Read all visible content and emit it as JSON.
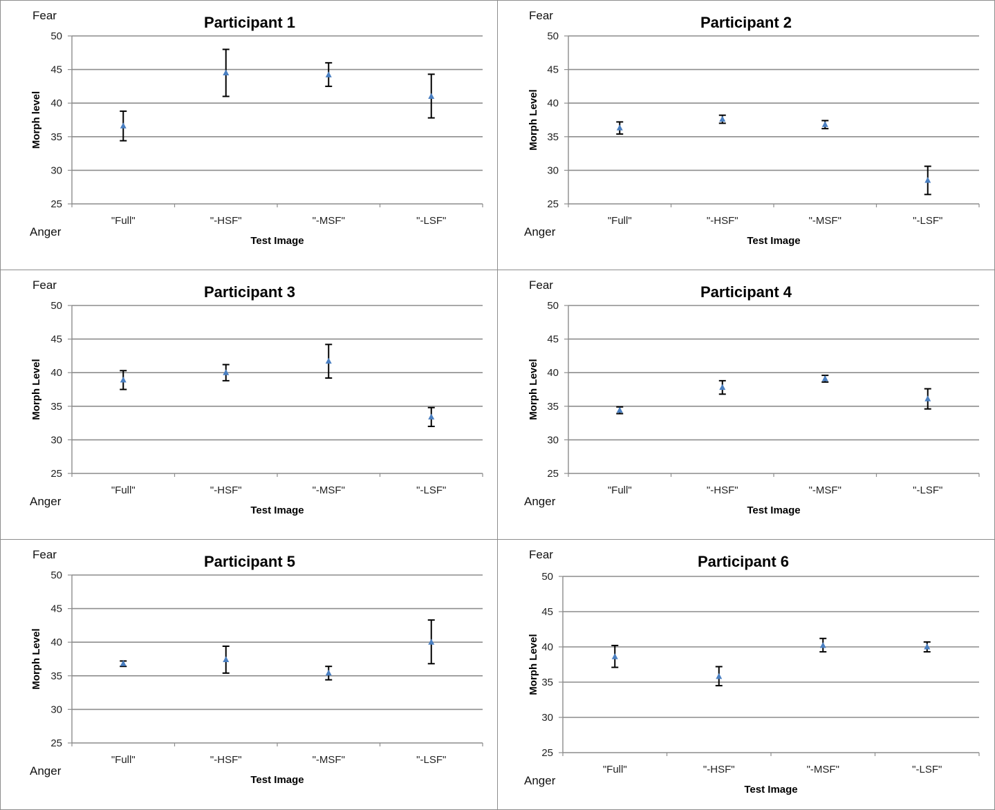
{
  "chart_data": [
    {
      "type": "scatter",
      "title": "Participant 1",
      "xlabel": "Test Image",
      "ylabel": "Morph level",
      "top_label": "Fear",
      "bottom_label": "Anger",
      "categories": [
        "\"Full\"",
        "\"-HSF\"",
        "\"-MSF\"",
        "\"-LSF\""
      ],
      "values": [
        36.6,
        44.5,
        44.2,
        41.0
      ],
      "error_low": [
        34.4,
        41.0,
        42.5,
        37.8
      ],
      "error_high": [
        38.8,
        48.0,
        46.0,
        44.3
      ],
      "ylim": [
        25,
        50
      ],
      "yticks": [
        "25",
        "30",
        "35",
        "40",
        "45",
        "50"
      ],
      "grid": true
    },
    {
      "type": "scatter",
      "title": "Participant 2",
      "xlabel": "Test Image",
      "ylabel": "Morph Level",
      "top_label": "Fear",
      "bottom_label": "Anger",
      "categories": [
        "\"Full\"",
        "\"-HSF\"",
        "\"-MSF\"",
        "\"-LSF\""
      ],
      "values": [
        36.3,
        37.6,
        36.8,
        28.5
      ],
      "error_low": [
        35.4,
        37.0,
        36.2,
        26.4
      ],
      "error_high": [
        37.2,
        38.2,
        37.4,
        30.6
      ],
      "ylim": [
        25,
        50
      ],
      "yticks": [
        "25",
        "30",
        "35",
        "40",
        "45",
        "50"
      ],
      "grid": true
    },
    {
      "type": "scatter",
      "title": "Participant 3",
      "xlabel": "Test Image",
      "ylabel": "Morph Level",
      "top_label": "Fear",
      "bottom_label": "Anger",
      "categories": [
        "\"Full\"",
        "\"-HSF\"",
        "\"-MSF\"",
        "\"-LSF\""
      ],
      "values": [
        38.9,
        40.0,
        41.7,
        33.4
      ],
      "error_low": [
        37.5,
        38.8,
        39.2,
        32.0
      ],
      "error_high": [
        40.3,
        41.2,
        44.2,
        34.8
      ],
      "ylim": [
        25,
        50
      ],
      "yticks": [
        "25",
        "30",
        "35",
        "40",
        "45",
        "50"
      ],
      "grid": true
    },
    {
      "type": "scatter",
      "title": "Participant 4",
      "xlabel": "Test Image",
      "ylabel": "Morph Level",
      "top_label": "Fear",
      "bottom_label": "Anger",
      "categories": [
        "\"Full\"",
        "\"-HSF\"",
        "\"-MSF\"",
        "\"-LSF\""
      ],
      "values": [
        34.4,
        37.8,
        39.1,
        36.1
      ],
      "error_low": [
        33.9,
        36.8,
        38.6,
        34.6
      ],
      "error_high": [
        34.9,
        38.8,
        39.6,
        37.6
      ],
      "ylim": [
        25,
        50
      ],
      "yticks": [
        "25",
        "30",
        "35",
        "40",
        "45",
        "50"
      ],
      "grid": true
    },
    {
      "type": "scatter",
      "title": "Participant 5",
      "xlabel": "Test Image",
      "ylabel": "Morph Level",
      "top_label": "Fear",
      "bottom_label": "Anger",
      "categories": [
        "\"Full\"",
        "\"-HSF\"",
        "\"-MSF\"",
        "\"-LSF\""
      ],
      "values": [
        36.8,
        37.4,
        35.4,
        40.0
      ],
      "error_low": [
        36.4,
        35.4,
        34.4,
        36.8
      ],
      "error_high": [
        37.2,
        39.4,
        36.4,
        43.3
      ],
      "ylim": [
        25,
        50
      ],
      "yticks": [
        "25",
        "30",
        "35",
        "40",
        "45",
        "50"
      ],
      "grid": true
    },
    {
      "type": "scatter",
      "title": "Participant 6",
      "xlabel": "Test Image",
      "ylabel": "Morph Level",
      "top_label": "Fear",
      "bottom_label": "Anger",
      "categories": [
        "\"Full\"",
        "\"-HSF\"",
        "\"-MSF\"",
        "\"-LSF\""
      ],
      "values": [
        38.6,
        35.8,
        40.2,
        40.0
      ],
      "error_low": [
        37.1,
        34.5,
        39.3,
        39.3
      ],
      "error_high": [
        40.2,
        37.2,
        41.2,
        40.7
      ],
      "ylim": [
        25,
        50
      ],
      "yticks": [
        "25",
        "30",
        "35",
        "40",
        "45",
        "50"
      ],
      "grid": true
    }
  ],
  "colors": {
    "marker": "#4a7fc1",
    "errorbar": "#000000",
    "gridline": "#8c8c8c",
    "axis": "#8c8c8c",
    "panel_border": "#8c8c8c"
  }
}
